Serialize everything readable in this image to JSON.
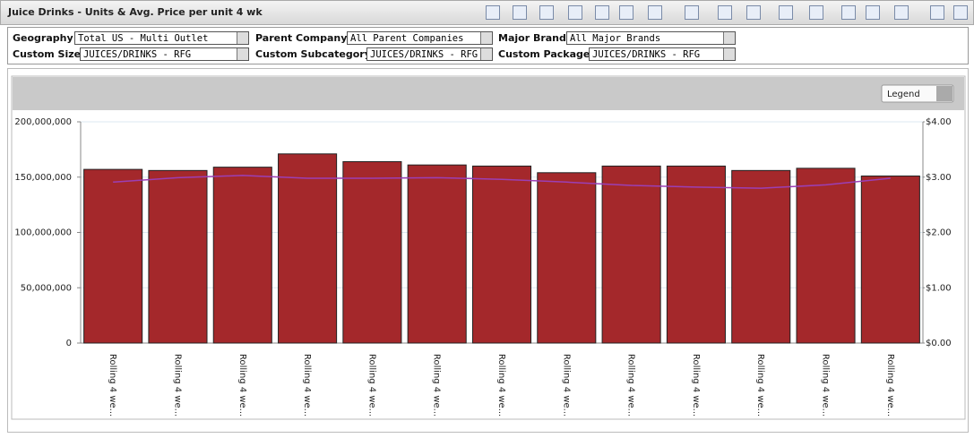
{
  "header": {
    "title": "Juice Drinks - Units & Avg. Price per unit 4 wk"
  },
  "filters": [
    {
      "label": "Geography",
      "value": "Total US - Multi Outlet"
    },
    {
      "label": "Parent Company",
      "value": "All Parent Companies"
    },
    {
      "label": "Major Brand",
      "value": "All Major Brands"
    },
    {
      "label": "Custom Size",
      "value": "JUICES/DRINKS - RFG"
    },
    {
      "label": "Custom Subcategory",
      "value": "JUICES/DRINKS - RFG"
    },
    {
      "label": "Custom Package",
      "value": "JUICES/DRINKS - RFG"
    }
  ],
  "legend_button": "Legend",
  "chart_data": {
    "type": "combo",
    "categories": [
      "Rolling 4 we...",
      "Rolling 4 we...",
      "Rolling 4 we...",
      "Rolling 4 we...",
      "Rolling 4 we...",
      "Rolling 4 we...",
      "Rolling 4 we...",
      "Rolling 4 we...",
      "Rolling 4 we...",
      "Rolling 4 we...",
      "Rolling 4 we...",
      "Rolling 4 we...",
      "Rolling 4 we..."
    ],
    "series": [
      {
        "type": "bar",
        "color": "#a4282b",
        "values": [
          157000000,
          156000000,
          159000000,
          171000000,
          164000000,
          161000000,
          160000000,
          154000000,
          160000000,
          160000000,
          156000000,
          158000000,
          151000000
        ]
      },
      {
        "type": "line",
        "color": "#9b3fb5",
        "axis": "y2",
        "values": [
          2.91,
          2.99,
          3.03,
          2.98,
          2.98,
          2.99,
          2.96,
          2.91,
          2.85,
          2.82,
          2.8,
          2.86,
          2.98
        ]
      }
    ],
    "ylim": [
      0,
      200000000
    ],
    "yticks": [
      {
        "value": 0,
        "label": "0"
      },
      {
        "value": 50000000,
        "label": "50,000,000"
      },
      {
        "value": 100000000,
        "label": "100,000,000"
      },
      {
        "value": 150000000,
        "label": "150,000,000"
      },
      {
        "value": 200000000,
        "label": "200,000,000"
      }
    ],
    "y2lim": [
      0,
      4
    ],
    "y2ticks": [
      {
        "value": 0,
        "label": "$0.00"
      },
      {
        "value": 1,
        "label": "$1.00"
      },
      {
        "value": 2,
        "label": "$2.00"
      },
      {
        "value": 3,
        "label": "$3.00"
      },
      {
        "value": 4,
        "label": "$4.00"
      }
    ],
    "grid": true
  }
}
